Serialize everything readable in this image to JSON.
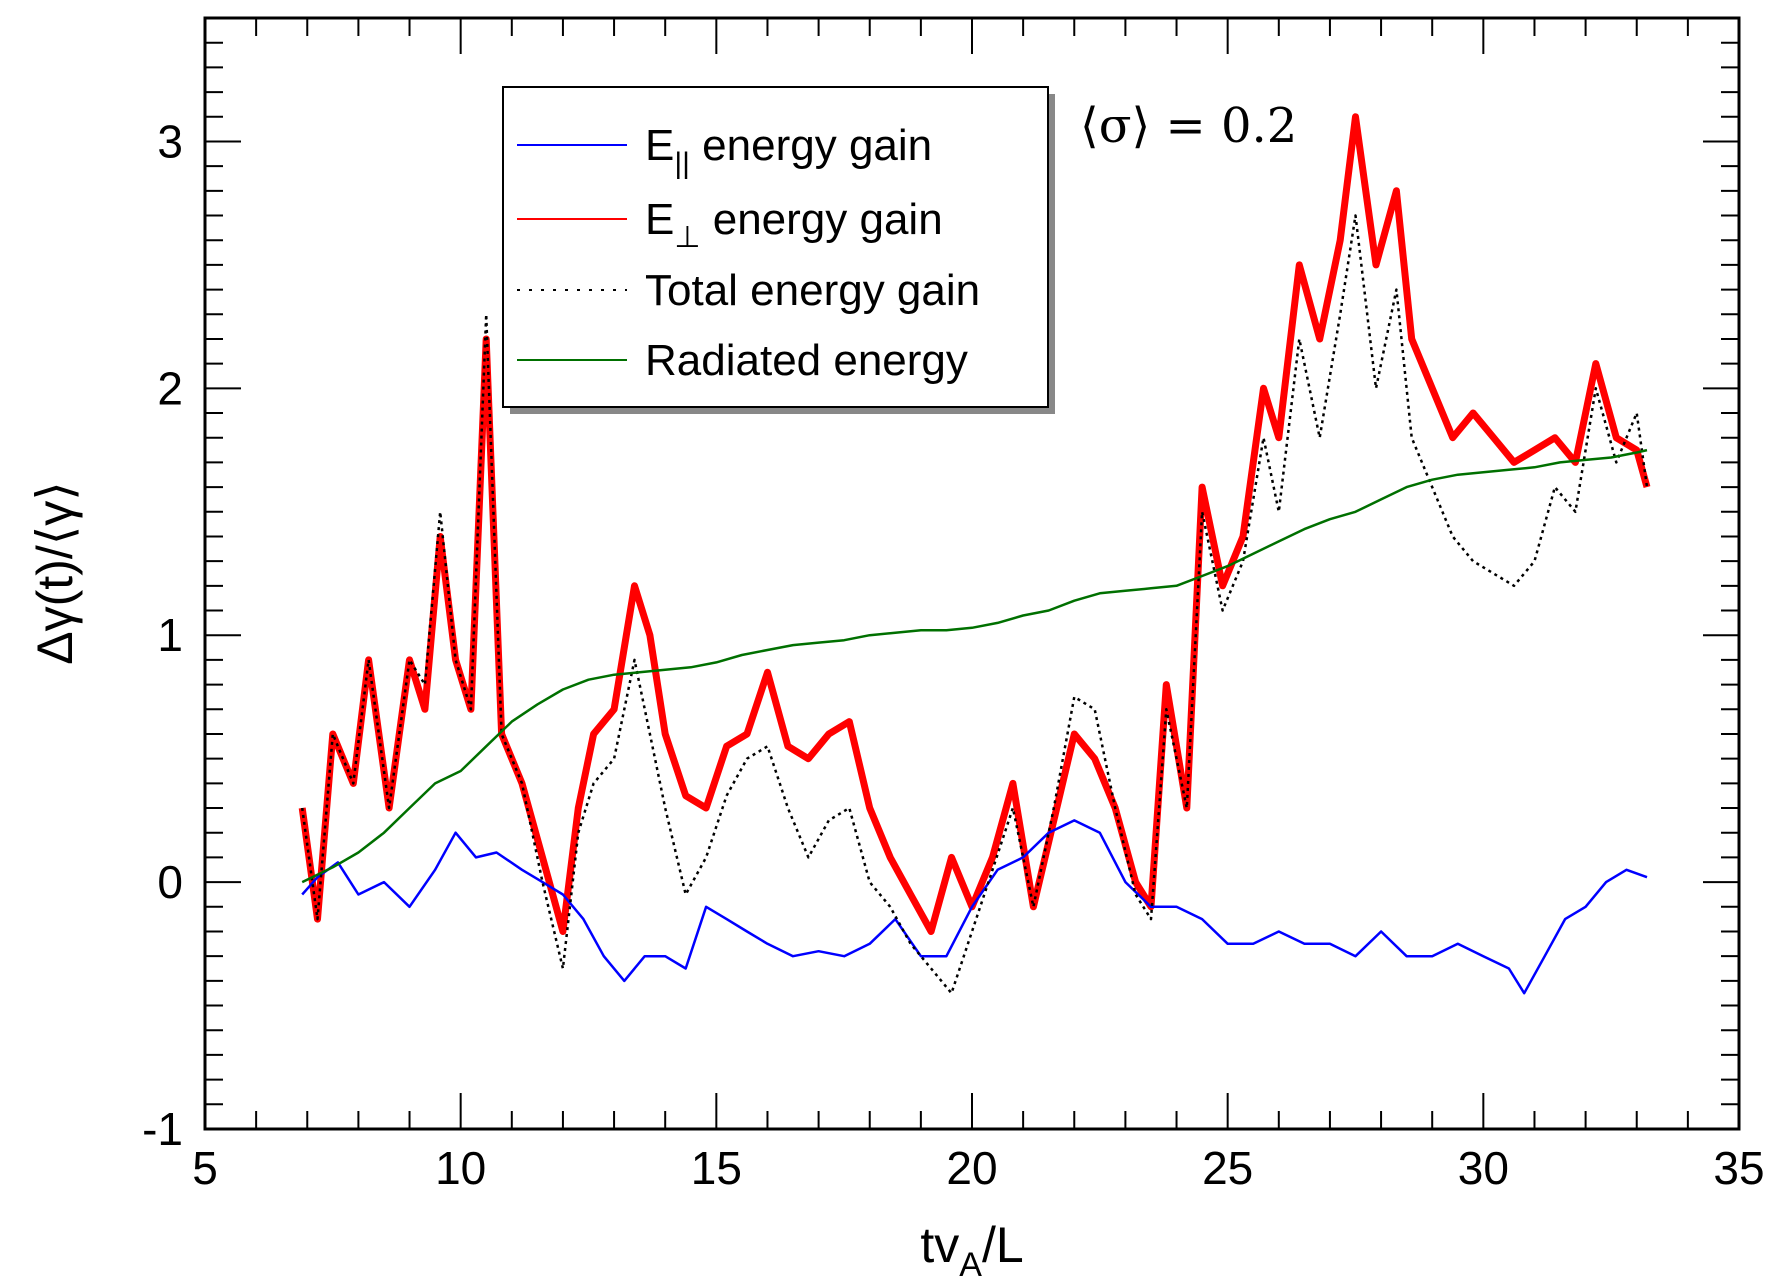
{
  "chart_data": {
    "type": "line",
    "title": "",
    "xlabel": "tv_A/L",
    "ylabel": "Δγ(t)/⟨γ⟩",
    "xlim": [
      5,
      35
    ],
    "ylim": [
      -1,
      3.5
    ],
    "xticks": [
      5,
      10,
      15,
      20,
      25,
      30,
      35
    ],
    "yticks": [
      -1,
      0,
      1,
      2,
      3
    ],
    "annotation": "⟨σ⟩ = 0.2",
    "legend_position": "top-center",
    "series": [
      {
        "name": "E|| energy gain",
        "color": "#0000ff",
        "style": "solid",
        "x": [
          6.9,
          7.2,
          7.6,
          8.0,
          8.5,
          9.0,
          9.5,
          9.9,
          10.3,
          10.7,
          11.2,
          11.6,
          12.0,
          12.4,
          12.8,
          13.2,
          13.6,
          14.0,
          14.4,
          14.8,
          15.2,
          15.6,
          16.0,
          16.5,
          17.0,
          17.5,
          18.0,
          18.5,
          19.0,
          19.5,
          20.0,
          20.5,
          21.0,
          21.5,
          22.0,
          22.5,
          23.0,
          23.5,
          24.0,
          24.5,
          25.0,
          25.5,
          26.0,
          26.5,
          27.0,
          27.5,
          28.0,
          28.5,
          29.0,
          29.5,
          30.0,
          30.5,
          30.8,
          31.2,
          31.6,
          32.0,
          32.4,
          32.8,
          33.2
        ],
        "y": [
          -0.05,
          0.02,
          0.08,
          -0.05,
          0.0,
          -0.1,
          0.05,
          0.2,
          0.1,
          0.12,
          0.05,
          0.0,
          -0.05,
          -0.15,
          -0.3,
          -0.4,
          -0.3,
          -0.3,
          -0.35,
          -0.1,
          -0.15,
          -0.2,
          -0.25,
          -0.3,
          -0.28,
          -0.3,
          -0.25,
          -0.15,
          -0.3,
          -0.3,
          -0.1,
          0.05,
          0.1,
          0.2,
          0.25,
          0.2,
          0.0,
          -0.1,
          -0.1,
          -0.15,
          -0.25,
          -0.25,
          -0.2,
          -0.25,
          -0.25,
          -0.3,
          -0.2,
          -0.3,
          -0.3,
          -0.25,
          -0.3,
          -0.35,
          -0.45,
          -0.3,
          -0.15,
          -0.1,
          0.0,
          0.05,
          0.02
        ]
      },
      {
        "name": "E⊥ energy gain",
        "color": "#ff0000",
        "style": "solid",
        "x": [
          6.9,
          7.2,
          7.5,
          7.9,
          8.2,
          8.6,
          9.0,
          9.3,
          9.6,
          9.9,
          10.2,
          10.5,
          10.8,
          11.2,
          11.6,
          12.0,
          12.3,
          12.6,
          13.0,
          13.4,
          13.7,
          14.0,
          14.4,
          14.8,
          15.2,
          15.6,
          16.0,
          16.4,
          16.8,
          17.2,
          17.6,
          18.0,
          18.4,
          18.8,
          19.2,
          19.6,
          20.0,
          20.4,
          20.8,
          21.2,
          21.6,
          22.0,
          22.4,
          22.8,
          23.2,
          23.5,
          23.8,
          24.2,
          24.5,
          24.9,
          25.3,
          25.7,
          26.0,
          26.4,
          26.8,
          27.2,
          27.5,
          27.9,
          28.3,
          28.6,
          29.0,
          29.4,
          29.8,
          30.2,
          30.6,
          31.0,
          31.4,
          31.8,
          32.2,
          32.6,
          33.0,
          33.2
        ],
        "y": [
          0.3,
          -0.15,
          0.6,
          0.4,
          0.9,
          0.3,
          0.9,
          0.7,
          1.4,
          0.9,
          0.7,
          2.2,
          0.6,
          0.4,
          0.1,
          -0.2,
          0.3,
          0.6,
          0.7,
          1.2,
          1.0,
          0.6,
          0.35,
          0.3,
          0.55,
          0.6,
          0.85,
          0.55,
          0.5,
          0.6,
          0.65,
          0.3,
          0.1,
          -0.05,
          -0.2,
          0.1,
          -0.1,
          0.1,
          0.4,
          -0.1,
          0.25,
          0.6,
          0.5,
          0.3,
          0.0,
          -0.1,
          0.8,
          0.3,
          1.6,
          1.2,
          1.4,
          2.0,
          1.8,
          2.5,
          2.2,
          2.6,
          3.1,
          2.5,
          2.8,
          2.2,
          2.0,
          1.8,
          1.9,
          1.8,
          1.7,
          1.75,
          1.8,
          1.7,
          2.1,
          1.8,
          1.75,
          1.6
        ]
      },
      {
        "name": "Total energy gain",
        "color": "#000000",
        "style": "dotted",
        "x": [
          6.9,
          7.2,
          7.5,
          7.9,
          8.2,
          8.6,
          9.0,
          9.3,
          9.6,
          9.9,
          10.2,
          10.5,
          10.8,
          11.2,
          11.6,
          12.0,
          12.3,
          12.6,
          13.0,
          13.4,
          13.7,
          14.0,
          14.4,
          14.8,
          15.2,
          15.6,
          16.0,
          16.4,
          16.8,
          17.2,
          17.6,
          18.0,
          18.4,
          18.8,
          19.2,
          19.6,
          20.0,
          20.4,
          20.8,
          21.2,
          21.6,
          22.0,
          22.4,
          22.8,
          23.2,
          23.5,
          23.8,
          24.2,
          24.5,
          24.9,
          25.3,
          25.7,
          26.0,
          26.4,
          26.8,
          27.2,
          27.5,
          27.9,
          28.3,
          28.6,
          29.0,
          29.4,
          29.8,
          30.2,
          30.6,
          31.0,
          31.4,
          31.8,
          32.2,
          32.6,
          33.0,
          33.2
        ],
        "y": [
          0.3,
          -0.15,
          0.6,
          0.4,
          0.9,
          0.3,
          0.9,
          0.8,
          1.5,
          0.9,
          0.7,
          2.3,
          0.6,
          0.4,
          0.0,
          -0.35,
          0.2,
          0.4,
          0.5,
          0.9,
          0.6,
          0.3,
          -0.05,
          0.1,
          0.35,
          0.5,
          0.55,
          0.3,
          0.1,
          0.25,
          0.3,
          0.0,
          -0.1,
          -0.25,
          -0.35,
          -0.45,
          -0.2,
          0.05,
          0.3,
          -0.1,
          0.3,
          0.75,
          0.7,
          0.3,
          -0.05,
          -0.15,
          0.7,
          0.3,
          1.5,
          1.1,
          1.3,
          1.8,
          1.5,
          2.2,
          1.8,
          2.3,
          2.7,
          2.0,
          2.4,
          1.8,
          1.6,
          1.4,
          1.3,
          1.25,
          1.2,
          1.3,
          1.6,
          1.5,
          2.0,
          1.7,
          1.9,
          1.6
        ]
      },
      {
        "name": "Radiated energy",
        "color": "#007000",
        "style": "solid",
        "x": [
          6.9,
          7.5,
          8.0,
          8.5,
          9.0,
          9.5,
          10.0,
          10.5,
          11.0,
          11.5,
          12.0,
          12.5,
          13.0,
          13.5,
          14.0,
          14.5,
          15.0,
          15.5,
          16.0,
          16.5,
          17.0,
          17.5,
          18.0,
          18.5,
          19.0,
          19.5,
          20.0,
          20.5,
          21.0,
          21.5,
          22.0,
          22.5,
          23.0,
          23.5,
          24.0,
          24.5,
          25.0,
          25.5,
          26.0,
          26.5,
          27.0,
          27.5,
          28.0,
          28.5,
          29.0,
          29.5,
          30.0,
          30.5,
          31.0,
          31.5,
          32.0,
          32.5,
          33.0,
          33.2
        ],
        "y": [
          0.0,
          0.06,
          0.12,
          0.2,
          0.3,
          0.4,
          0.45,
          0.55,
          0.65,
          0.72,
          0.78,
          0.82,
          0.84,
          0.85,
          0.86,
          0.87,
          0.89,
          0.92,
          0.94,
          0.96,
          0.97,
          0.98,
          1.0,
          1.01,
          1.02,
          1.02,
          1.03,
          1.05,
          1.08,
          1.1,
          1.14,
          1.17,
          1.18,
          1.19,
          1.2,
          1.24,
          1.28,
          1.33,
          1.38,
          1.43,
          1.47,
          1.5,
          1.55,
          1.6,
          1.63,
          1.65,
          1.66,
          1.67,
          1.68,
          1.7,
          1.71,
          1.72,
          1.74,
          1.75
        ]
      }
    ]
  }
}
